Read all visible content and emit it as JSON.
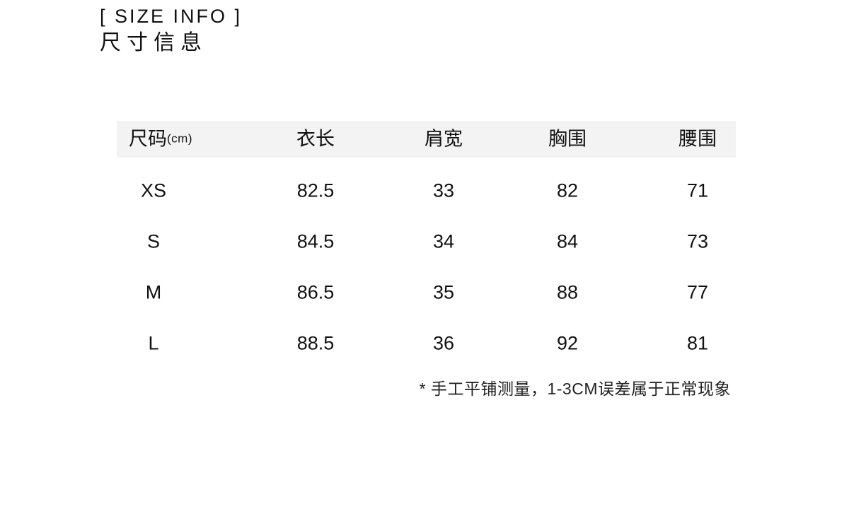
{
  "title": {
    "en": "[ SIZE INFO ]",
    "zh": "尺寸信息"
  },
  "size_col_header": {
    "label": "尺码",
    "unit": "(cm)"
  },
  "chart_data": {
    "type": "table",
    "title": "[ SIZE INFO ] 尺寸信息",
    "columns": [
      "尺码(cm)",
      "衣长",
      "肩宽",
      "胸围",
      "腰围"
    ],
    "rows": [
      [
        "XS",
        "82.5",
        "33",
        "82",
        "71"
      ],
      [
        "S",
        "84.5",
        "34",
        "84",
        "73"
      ],
      [
        "M",
        "86.5",
        "35",
        "88",
        "77"
      ],
      [
        "L",
        "88.5",
        "36",
        "92",
        "81"
      ]
    ],
    "footnote": "* 手工平铺测量，1-3CM误差属于正常现象",
    "header_bg": "#f3f3f3",
    "text_color": "#111111",
    "layout": {
      "grid": false,
      "header_row_shaded": true,
      "unit": "cm"
    }
  }
}
